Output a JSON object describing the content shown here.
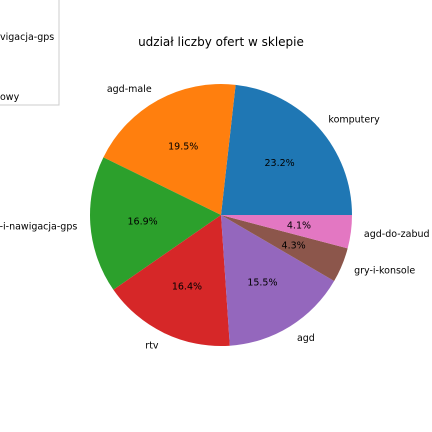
{
  "chart_data": {
    "type": "pie",
    "title": "udział liczby ofert w sklepie",
    "slices": [
      {
        "label": "komputery",
        "value": 23.2,
        "pct_label": "23.2%",
        "color": "#1f77b4"
      },
      {
        "label": "agd-male",
        "value": 19.5,
        "pct_label": "19.5%",
        "color": "#ff7f0e"
      },
      {
        "label": "gps-i-nawigacja-gps",
        "value": 16.9,
        "pct_label": "16.9%",
        "color": "#2ca02c"
      },
      {
        "label": "rtv",
        "value": 16.4,
        "pct_label": "16.4%",
        "color": "#d62728"
      },
      {
        "label": "agd",
        "value": 15.5,
        "pct_label": "15.5%",
        "color": "#9467bd"
      },
      {
        "label": "gry-i-konsole",
        "value": 4.3,
        "pct_label": "4.3%",
        "color": "#8c564b"
      },
      {
        "label": "agd-do-zabud",
        "value": 4.1,
        "pct_label": "4.1%",
        "color": "#e377c2"
      }
    ],
    "legend": {
      "placement": "top-left (clipped)",
      "entries": [
        "vigacja-gps",
        "owy"
      ]
    }
  }
}
